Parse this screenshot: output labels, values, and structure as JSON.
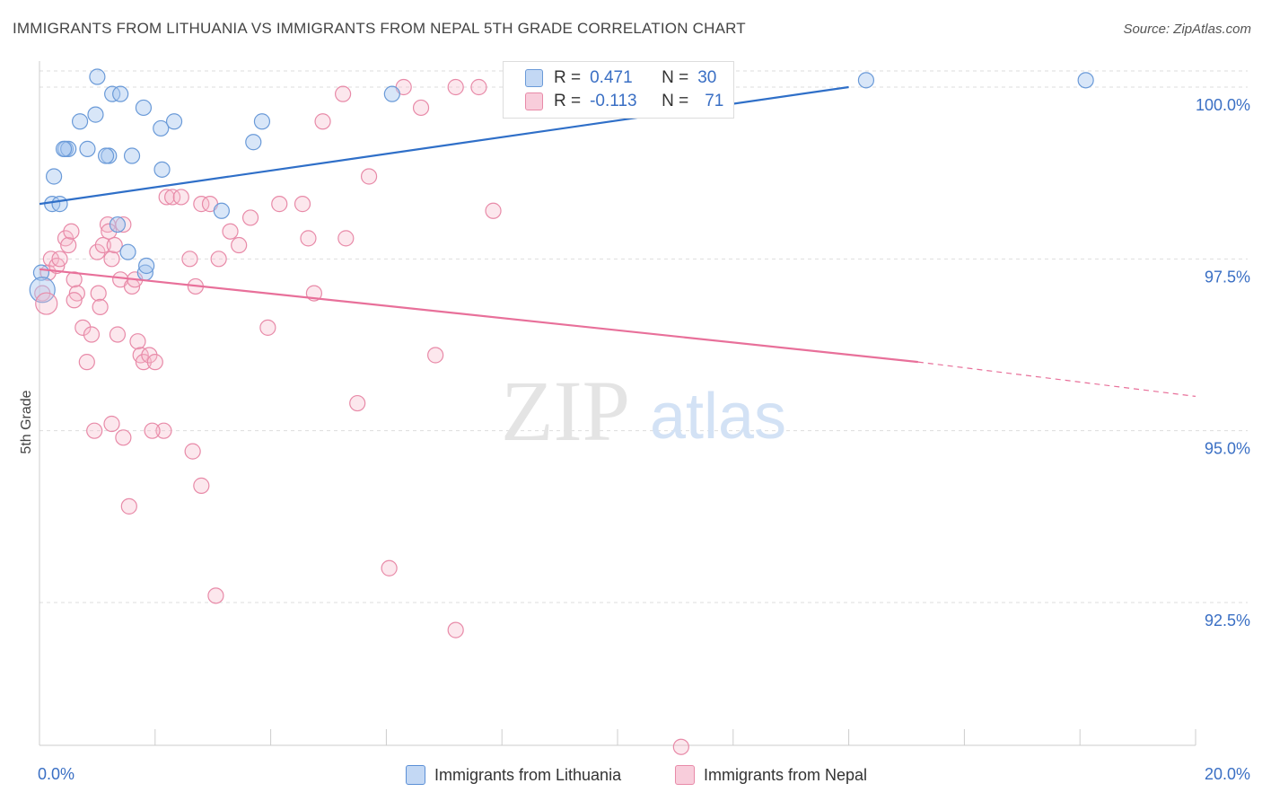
{
  "header": {
    "title": "IMMIGRANTS FROM LITHUANIA VS IMMIGRANTS FROM NEPAL 5TH GRADE CORRELATION CHART",
    "source": "Source: ZipAtlas.com"
  },
  "watermark": {
    "zip": "ZIP",
    "atlas": "atlas"
  },
  "legend": {
    "r_label": "R =",
    "n_label": "N =",
    "rows": [
      {
        "r": "0.471",
        "n": "30",
        "color": "#a9c8f0"
      },
      {
        "r": "-0.113",
        "n": "71",
        "color": "#f6b9cc"
      }
    ]
  },
  "colors": {
    "blue_fill": "#a9c8f0",
    "blue_line": "#2f6fc8",
    "pink_fill": "#f6b9cc",
    "pink_line": "#e8709a",
    "axis_text": "#3a6fc4",
    "grid": "#dddddd"
  },
  "chart_data": {
    "type": "scatter",
    "title": "IMMIGRANTS FROM LITHUANIA VS IMMIGRANTS FROM NEPAL 5TH GRADE CORRELATION CHART",
    "xlabel": "",
    "ylabel": "5th Grade",
    "xlim": [
      0,
      20
    ],
    "ylim": [
      90.5,
      100.2
    ],
    "x_tick_labels": [
      "0.0%",
      "20.0%"
    ],
    "y_ticks": [
      {
        "value": 100.0,
        "label": "100.0%"
      },
      {
        "value": 97.5,
        "label": "97.5%"
      },
      {
        "value": 95.0,
        "label": "95.0%"
      },
      {
        "value": 92.5,
        "label": "92.5%"
      }
    ],
    "grid": true,
    "series": [
      {
        "name": "Immigrants from Lithuania",
        "color": "#a9c8f0",
        "points": [
          [
            0.03,
            97.3
          ],
          [
            0.25,
            98.7
          ],
          [
            0.22,
            98.3
          ],
          [
            0.35,
            98.3
          ],
          [
            0.45,
            99.1
          ],
          [
            0.5,
            99.1
          ],
          [
            0.42,
            99.1
          ],
          [
            0.83,
            99.1
          ],
          [
            0.7,
            99.5
          ],
          [
            0.97,
            99.6
          ],
          [
            1.0,
            100.15
          ],
          [
            1.26,
            99.9
          ],
          [
            1.4,
            99.9
          ],
          [
            1.35,
            98.0
          ],
          [
            1.2,
            99.0
          ],
          [
            1.6,
            99.0
          ],
          [
            1.8,
            99.7
          ],
          [
            2.1,
            99.4
          ],
          [
            2.12,
            98.8
          ],
          [
            2.33,
            99.5
          ],
          [
            1.53,
            97.6
          ],
          [
            1.83,
            97.3
          ],
          [
            1.85,
            97.4
          ],
          [
            3.15,
            98.2
          ],
          [
            3.7,
            99.2
          ],
          [
            3.85,
            99.5
          ],
          [
            6.1,
            99.9
          ],
          [
            14.3,
            100.1
          ],
          [
            18.1,
            100.1
          ],
          [
            1.15,
            99.0
          ]
        ],
        "trend": {
          "x": [
            0,
            14.0
          ],
          "y": [
            98.3,
            100.0
          ]
        }
      },
      {
        "name": "Immigrants from Nepal",
        "color": "#f6b9cc",
        "points": [
          [
            0.05,
            97.0
          ],
          [
            0.15,
            97.3
          ],
          [
            0.2,
            97.5
          ],
          [
            0.3,
            97.4
          ],
          [
            0.35,
            97.5
          ],
          [
            0.45,
            97.8
          ],
          [
            0.5,
            97.7
          ],
          [
            0.55,
            97.9
          ],
          [
            0.6,
            97.2
          ],
          [
            0.65,
            97.0
          ],
          [
            0.75,
            96.5
          ],
          [
            0.82,
            96.0
          ],
          [
            0.9,
            96.4
          ],
          [
            1.0,
            97.6
          ],
          [
            1.02,
            97.0
          ],
          [
            1.05,
            96.8
          ],
          [
            1.1,
            97.7
          ],
          [
            1.18,
            98.0
          ],
          [
            1.2,
            97.9
          ],
          [
            1.25,
            97.5
          ],
          [
            1.3,
            97.7
          ],
          [
            1.35,
            96.4
          ],
          [
            1.4,
            97.2
          ],
          [
            1.45,
            98.0
          ],
          [
            1.6,
            97.1
          ],
          [
            1.65,
            97.2
          ],
          [
            1.7,
            96.3
          ],
          [
            1.75,
            96.1
          ],
          [
            1.8,
            96.0
          ],
          [
            1.9,
            96.1
          ],
          [
            2.0,
            96.0
          ],
          [
            2.15,
            95.0
          ],
          [
            2.2,
            98.4
          ],
          [
            2.3,
            98.4
          ],
          [
            2.45,
            98.4
          ],
          [
            2.6,
            97.5
          ],
          [
            2.7,
            97.1
          ],
          [
            2.8,
            98.3
          ],
          [
            2.95,
            98.3
          ],
          [
            3.1,
            97.5
          ],
          [
            3.3,
            97.9
          ],
          [
            3.45,
            97.7
          ],
          [
            3.65,
            98.1
          ],
          [
            3.95,
            96.5
          ],
          [
            4.15,
            98.3
          ],
          [
            4.55,
            98.3
          ],
          [
            4.65,
            97.8
          ],
          [
            4.75,
            97.0
          ],
          [
            4.9,
            99.5
          ],
          [
            5.25,
            99.9
          ],
          [
            5.3,
            97.8
          ],
          [
            5.5,
            95.4
          ],
          [
            5.7,
            98.7
          ],
          [
            6.05,
            93.0
          ],
          [
            6.3,
            100.0
          ],
          [
            6.6,
            99.7
          ],
          [
            6.85,
            96.1
          ],
          [
            7.2,
            100.0
          ],
          [
            7.6,
            100.0
          ],
          [
            7.2,
            92.1
          ],
          [
            7.85,
            98.2
          ],
          [
            0.95,
            95.0
          ],
          [
            1.25,
            95.1
          ],
          [
            1.45,
            94.9
          ],
          [
            1.55,
            93.9
          ],
          [
            1.95,
            95.0
          ],
          [
            2.65,
            94.7
          ],
          [
            2.8,
            94.2
          ],
          [
            3.05,
            92.6
          ],
          [
            11.1,
            90.4
          ],
          [
            0.6,
            96.9
          ]
        ],
        "trend": {
          "x": [
            0,
            15.2
          ],
          "y": [
            97.35,
            96.0
          ]
        },
        "trend_dashed": {
          "x": [
            15.2,
            20.0
          ],
          "y": [
            96.0,
            95.5
          ]
        }
      }
    ]
  },
  "bottom_legend": {
    "items": [
      {
        "label": "Immigrants from Lithuania",
        "color": "#a9c8f0",
        "border": "#5b8fd6"
      },
      {
        "label": "Immigrants from Nepal",
        "color": "#f6c4d4",
        "border": "#e88aa8"
      }
    ]
  }
}
